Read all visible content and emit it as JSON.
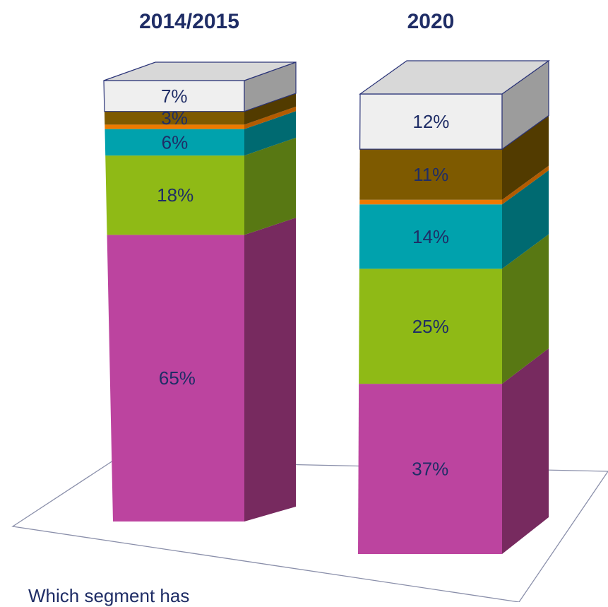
{
  "chart_data": {
    "type": "bar",
    "stacked": true,
    "three_d": true,
    "categories": [
      "2014/2015",
      "2020"
    ],
    "series": [
      {
        "values": [
          65,
          37
        ],
        "label_texts": [
          "65%",
          "37%"
        ],
        "color": "#bc449f",
        "side_color": "#772a5f"
      },
      {
        "values": [
          18,
          25
        ],
        "label_texts": [
          "18%",
          "25%"
        ],
        "color": "#8fba16",
        "side_color": "#587813"
      },
      {
        "values": [
          6,
          14
        ],
        "label_texts": [
          "6%",
          "14%"
        ],
        "color": "#00a2ad",
        "side_color": "#006a71"
      },
      {
        "values": [
          1,
          1
        ],
        "label_texts": [
          "",
          ""
        ],
        "color": "#ec7a00",
        "side_color": "#b35b00"
      },
      {
        "values": [
          3,
          11
        ],
        "label_texts": [
          "3%",
          "11%"
        ],
        "color": "#7e5a00",
        "side_color": "#523b00"
      },
      {
        "values": [
          7,
          12
        ],
        "label_texts": [
          "7%",
          "12%"
        ],
        "color": "#efefef",
        "side_color": "#9c9c9c"
      }
    ],
    "label_color": "#1f2d66",
    "floor_line_color": "#8a8faa",
    "outline_color": "#2b3478"
  },
  "question_text": "Which segment has"
}
